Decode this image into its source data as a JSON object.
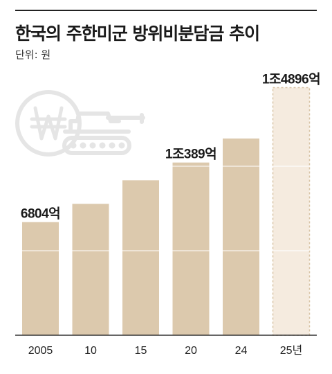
{
  "title": "한국의 주한미군 방위비분담금 추이",
  "unit_label": "단위: 원",
  "chart_data": {
    "type": "bar",
    "categories": [
      "2005",
      "10",
      "15",
      "20",
      "24",
      "25년"
    ],
    "values": [
      6804,
      7904,
      9320,
      10389,
      11833,
      14896
    ],
    "value_labels": [
      "6804억",
      "",
      "",
      "1조389억",
      "",
      "1조4896억"
    ],
    "projected_index": 5,
    "unit": "억",
    "title": "한국의 주한미군 방위비분담금 추이",
    "xlabel": "",
    "ylabel": "",
    "ylim": [
      0,
      15500
    ],
    "colors": {
      "bar": "#dcc9ad",
      "projected": "#f5ebdf",
      "projected_border": "#d8c4a6",
      "axis": "#333333",
      "icon": "#e5e5e5"
    },
    "grid": false,
    "legend": "none"
  }
}
